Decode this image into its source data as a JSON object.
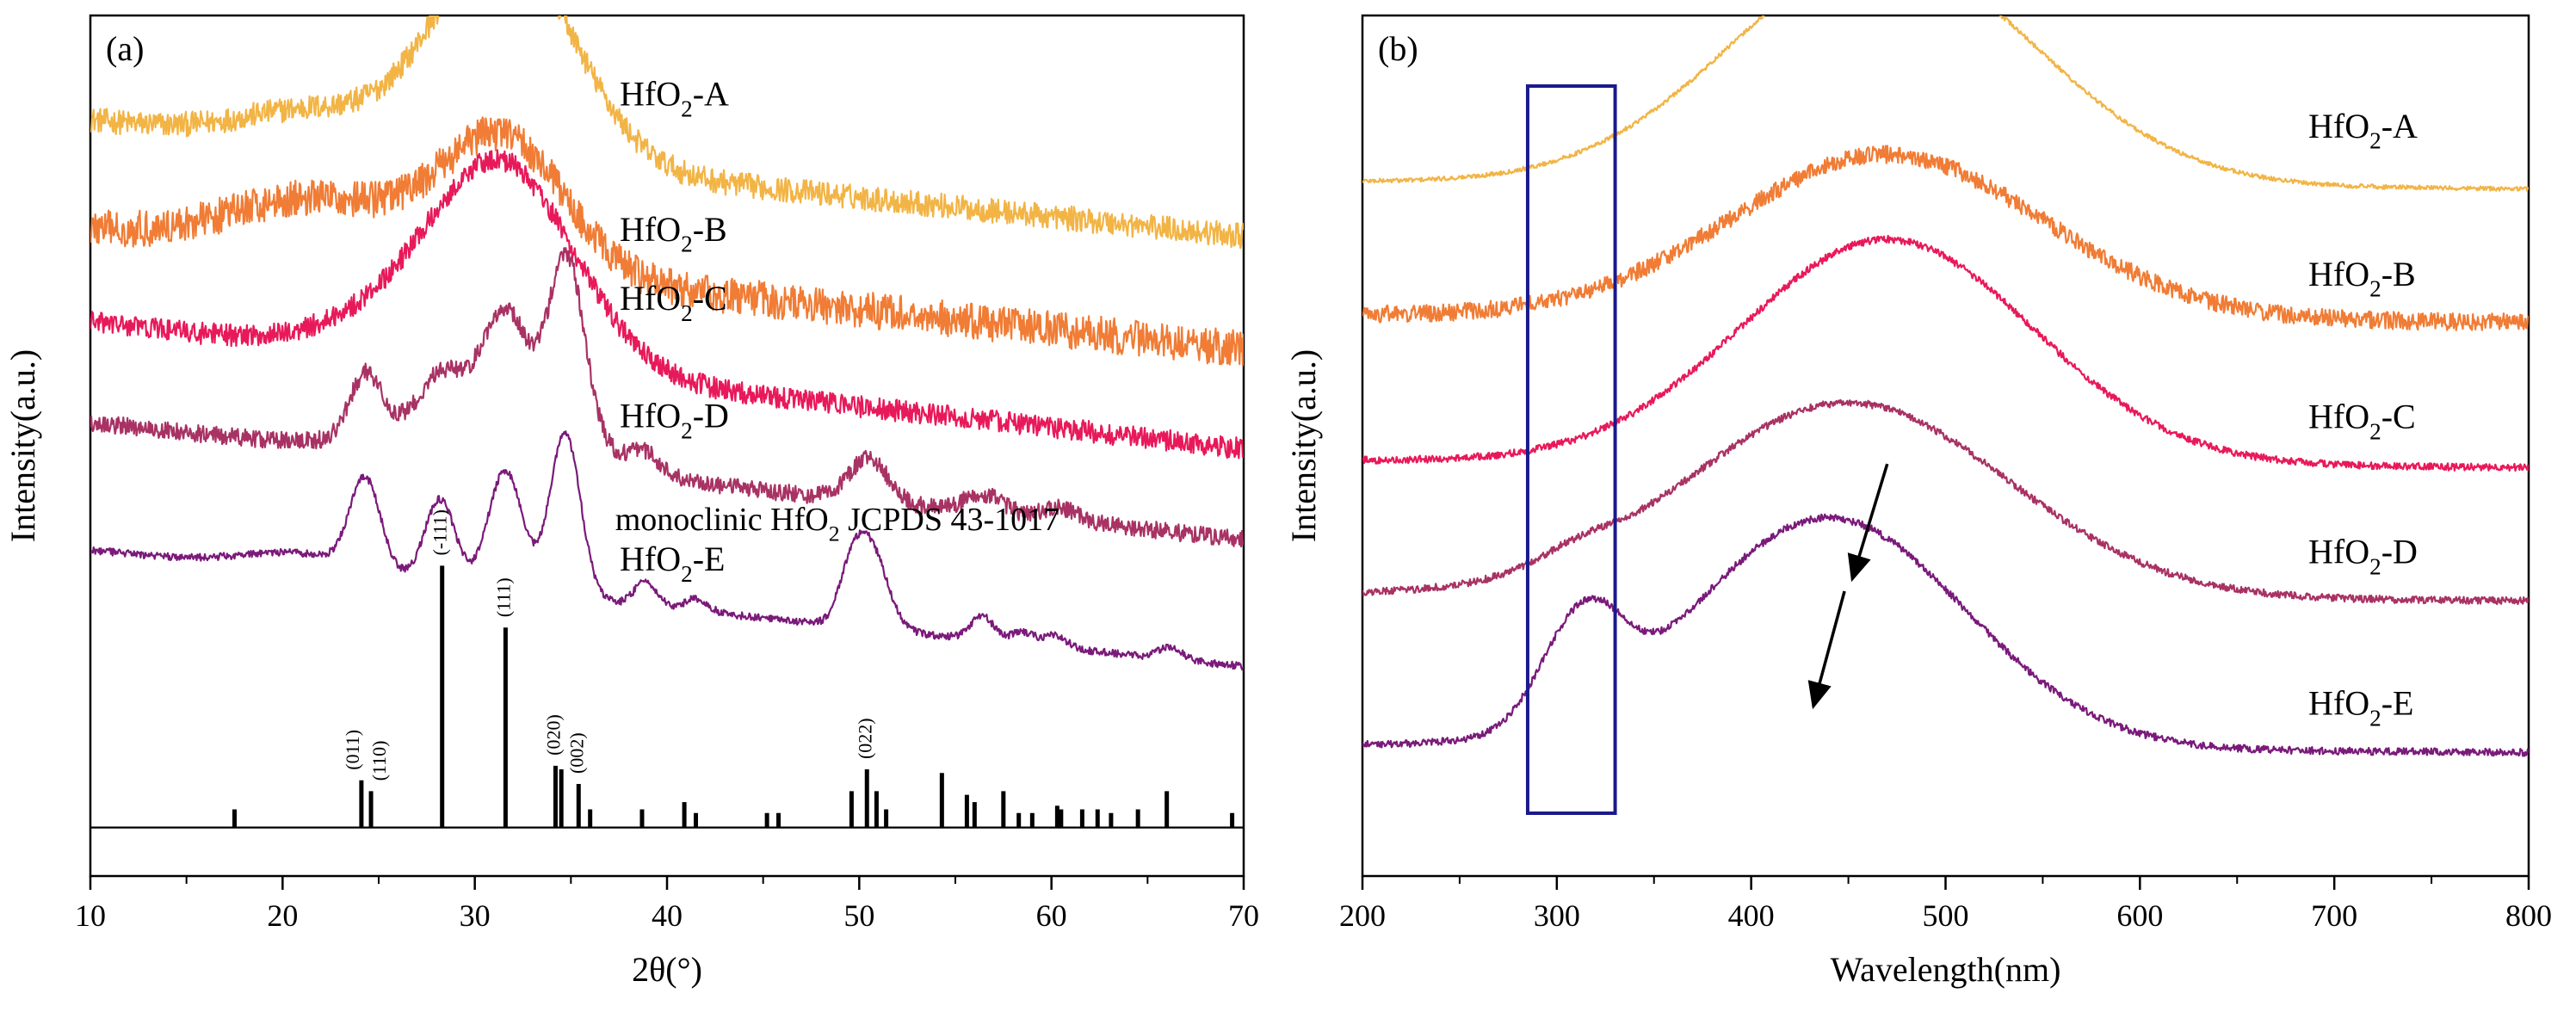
{
  "panels": [
    {
      "id": "a",
      "panel_label": "(a)",
      "chart_data": {
        "type": "line",
        "xlabel": "2θ(°)",
        "ylabel": "Intensity(a.u.)",
        "xlim": [
          10,
          70
        ],
        "xticks": [
          10,
          20,
          30,
          40,
          50,
          60,
          70
        ],
        "yticks_shown": false,
        "series": [
          {
            "name": "HfO2-A",
            "label_base": "HfO",
            "label_sub": "2",
            "label_suffix": "-A",
            "color": "#f2b445",
            "noise": 0.34,
            "baseline": 1.28,
            "slope": -0.0032,
            "peaks": [
              [
                31.5,
                0.36,
                3.6
              ],
              [
                21.5,
                0.05,
                3.5
              ]
            ]
          },
          {
            "name": "HfO2-B",
            "label_base": "HfO",
            "label_sub": "2",
            "label_suffix": "-B",
            "color": "#f07c35",
            "noise": 0.5,
            "baseline": 1.1,
            "slope": -0.0033,
            "peaks": [
              [
                31.5,
                0.22,
                3.2
              ],
              [
                22.0,
                0.09,
                4.5
              ]
            ]
          },
          {
            "name": "HfO2-C",
            "label_base": "HfO",
            "label_sub": "2",
            "label_suffix": "-C",
            "color": "#e8195a",
            "noise": 0.3,
            "baseline": 0.95,
            "slope": -0.0035,
            "peaks": [
              [
                31.3,
                0.34,
                3.8
              ],
              [
                24.0,
                0.03,
                3.0
              ]
            ]
          },
          {
            "name": "HfO2-D",
            "label_base": "HfO",
            "label_sub": "2",
            "label_suffix": "-D",
            "color": "#a83264",
            "noise": 0.24,
            "baseline": 0.78,
            "slope": -0.0032,
            "peaks": [
              [
                24.3,
                0.1,
                0.8
              ],
              [
                28.2,
                0.05,
                0.9
              ],
              [
                31.6,
                0.14,
                1.1
              ],
              [
                34.8,
                0.28,
                0.9
              ],
              [
                31.0,
                0.12,
                4.0
              ],
              [
                38.8,
                0.03,
                0.7
              ],
              [
                50.5,
                0.07,
                1.0
              ],
              [
                56.5,
                0.03,
                1.0
              ],
              [
                60.5,
                0.02,
                1.0
              ]
            ]
          },
          {
            "name": "HfO2-E",
            "label_base": "HfO",
            "label_sub": "2",
            "label_suffix": "-E",
            "color": "#7a1a7a",
            "noise": 0.1,
            "baseline": 0.57,
            "slope": -0.0032,
            "peaks": [
              [
                24.3,
                0.15,
                0.8
              ],
              [
                28.2,
                0.14,
                0.8
              ],
              [
                31.6,
                0.2,
                0.9
              ],
              [
                34.7,
                0.27,
                0.8
              ],
              [
                21.0,
                0.03,
                3.0
              ],
              [
                38.9,
                0.04,
                0.6
              ],
              [
                41.5,
                0.02,
                0.6
              ],
              [
                50.5,
                0.14,
                0.9
              ],
              [
                49.5,
                0.05,
                0.6
              ],
              [
                56.4,
                0.04,
                0.6
              ],
              [
                58.5,
                0.02,
                0.6
              ],
              [
                60.2,
                0.02,
                0.6
              ],
              [
                66.2,
                0.02,
                0.6
              ]
            ]
          }
        ],
        "reference": {
          "name": "monoclinic HfO2 JCPDS 43-1017",
          "label_base": "monoclinic HfO",
          "label_sub": "2",
          "label_suffix": " JCPDS 43-1017",
          "color": "#000000",
          "sticks": [
            [
              17.5,
              0.05
            ],
            [
              24.1,
              0.13
            ],
            [
              24.6,
              0.1
            ],
            [
              28.3,
              0.72
            ],
            [
              31.6,
              0.55
            ],
            [
              34.2,
              0.17
            ],
            [
              34.5,
              0.16
            ],
            [
              35.4,
              0.12
            ],
            [
              36.0,
              0.05
            ],
            [
              38.7,
              0.05
            ],
            [
              40.9,
              0.07
            ],
            [
              41.5,
              0.04
            ],
            [
              45.2,
              0.04
            ],
            [
              45.8,
              0.04
            ],
            [
              49.6,
              0.1
            ],
            [
              50.4,
              0.16
            ],
            [
              50.9,
              0.1
            ],
            [
              51.4,
              0.05
            ],
            [
              54.3,
              0.15
            ],
            [
              55.6,
              0.09
            ],
            [
              56.0,
              0.07
            ],
            [
              57.5,
              0.1
            ],
            [
              58.3,
              0.04
            ],
            [
              59.0,
              0.04
            ],
            [
              60.3,
              0.06
            ],
            [
              60.5,
              0.05
            ],
            [
              61.6,
              0.05
            ],
            [
              62.4,
              0.05
            ],
            [
              63.1,
              0.04
            ],
            [
              64.5,
              0.05
            ],
            [
              66.0,
              0.1
            ],
            [
              69.4,
              0.04
            ]
          ],
          "hkl_labels": [
            {
              "text": "(011)",
              "x": 24.1
            },
            {
              "text": "(110)",
              "x": 24.6
            },
            {
              "text": "(-111)",
              "x": 28.3
            },
            {
              "text": "(111)",
              "x": 31.6
            },
            {
              "text": "(020)",
              "x": 34.2
            },
            {
              "text": "(002)",
              "x": 35.4
            },
            {
              "text": "(022)",
              "x": 50.4
            }
          ]
        }
      }
    },
    {
      "id": "b",
      "panel_label": "(b)",
      "chart_data": {
        "type": "line",
        "xlabel": "Wavelength(nm)",
        "ylabel": "Intensity(a.u.)",
        "xlim": [
          200,
          800
        ],
        "xticks": [
          200,
          300,
          400,
          500,
          600,
          700,
          800
        ],
        "yticks_shown": false,
        "series": [
          {
            "name": "HfO2-A",
            "label_base": "HfO",
            "label_sub": "2",
            "label_suffix": "-A",
            "color": "#f2b445",
            "noise": 0.06,
            "baseline": 1.15,
            "slope": -2e-05,
            "peaks": [
              [
                468,
                0.38,
                78
              ]
            ]
          },
          {
            "name": "HfO2-B",
            "label_base": "HfO",
            "label_sub": "2",
            "label_suffix": "-B",
            "color": "#f07c35",
            "noise": 0.24,
            "baseline": 0.93,
            "slope": -2e-05,
            "peaks": [
              [
                470,
                0.27,
                80
              ]
            ]
          },
          {
            "name": "HfO2-C",
            "label_base": "HfO",
            "label_sub": "2",
            "label_suffix": "-C",
            "color": "#e8195a",
            "noise": 0.1,
            "baseline": 0.69,
            "slope": -2e-05,
            "peaks": [
              [
                470,
                0.37,
                75
              ]
            ]
          },
          {
            "name": "HfO2-D",
            "label_base": "HfO",
            "label_sub": "2",
            "label_suffix": "-D",
            "color": "#a83264",
            "noise": 0.1,
            "baseline": 0.47,
            "slope": -2e-05,
            "peaks": [
              [
                450,
                0.32,
                82
              ],
              [
                310,
                0.02,
                20
              ]
            ]
          },
          {
            "name": "HfO2-E",
            "label_base": "HfO",
            "label_sub": "2",
            "label_suffix": "-E",
            "color": "#7a1a7a",
            "noise": 0.1,
            "baseline": 0.22,
            "slope": -2e-05,
            "peaks": [
              [
                440,
                0.38,
                70
              ],
              [
                305,
                0.12,
                17
              ],
              [
                325,
                0.08,
                15
              ]
            ]
          }
        ],
        "highlight_box": {
          "x": [
            285,
            330
          ],
          "color": "#1a1a8c"
        },
        "arrows": [
          {
            "from": [
              470,
              0.68
            ],
            "to": [
              452,
              0.49
            ]
          },
          {
            "from": [
              448,
              0.47
            ],
            "to": [
              432,
              0.28
            ]
          }
        ]
      }
    }
  ]
}
